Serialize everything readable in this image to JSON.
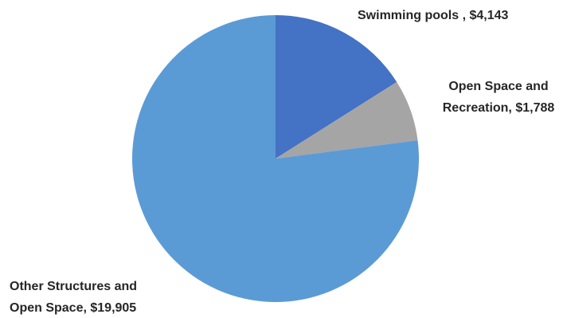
{
  "chart_data": {
    "type": "pie",
    "start_angle": "12 o'clock",
    "direction": "clockwise",
    "slices": [
      {
        "label": "Swimming pools",
        "value": 4143,
        "display_lines": [
          "Swimming pools , $4,143"
        ],
        "color": "#4472C4"
      },
      {
        "label": "Open Space and Recreation",
        "value": 1788,
        "display_lines": [
          "Open Space and",
          "Recreation, $1,788"
        ],
        "color": "#A5A5A5"
      },
      {
        "label": "Other Structures and Open Space",
        "value": 19905,
        "display_lines": [
          "Other Structures and",
          "Open Space, $19,905"
        ],
        "color": "#5B9BD5"
      }
    ]
  }
}
